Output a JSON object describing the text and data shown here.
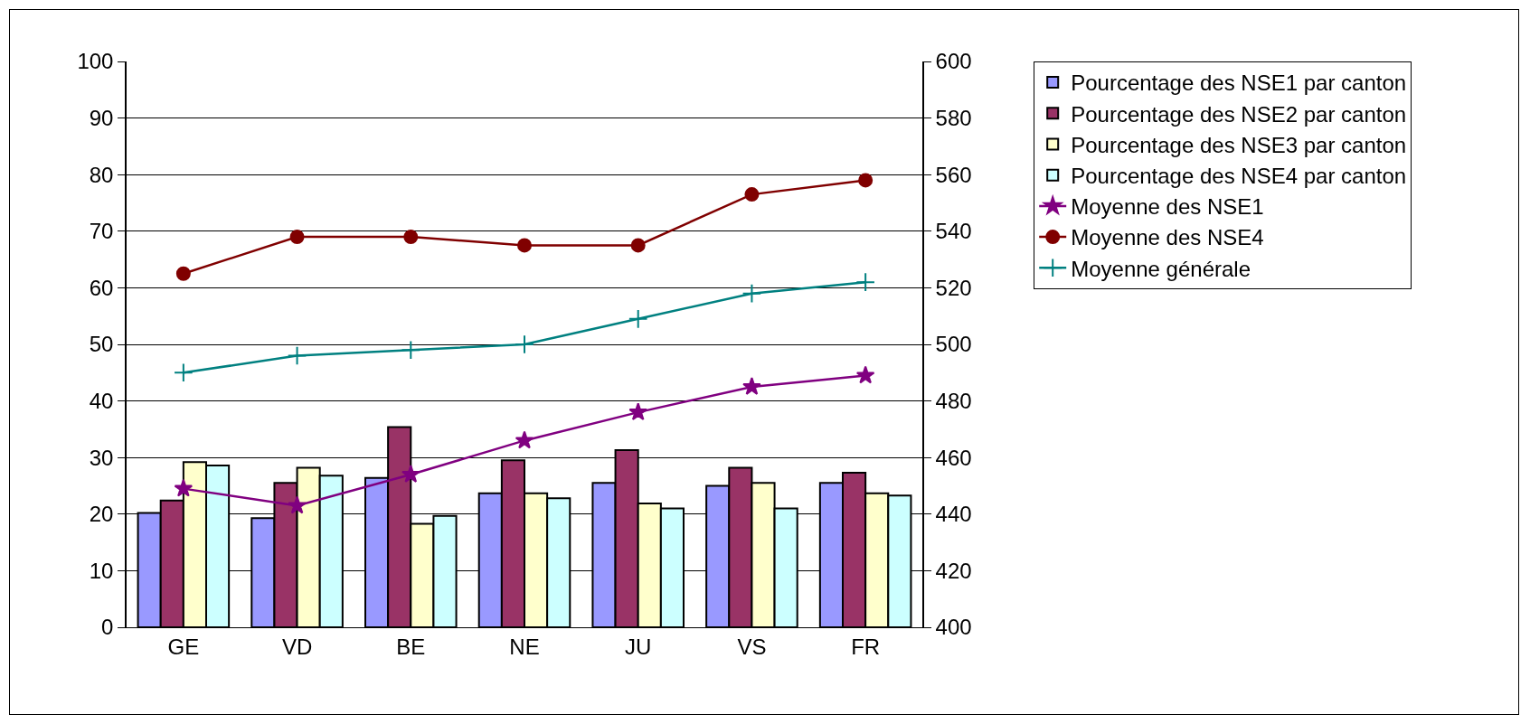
{
  "chart_data": {
    "type": "bar",
    "categories": [
      "GE",
      "VD",
      "BE",
      "NE",
      "JU",
      "VS",
      "FR"
    ],
    "series": [
      {
        "name": "Pourcentage des NSE1 par canton",
        "color": "#9999ff",
        "values": [
          20.2,
          19.3,
          26.4,
          23.7,
          25.5,
          25.0,
          25.5
        ]
      },
      {
        "name": "Pourcentage des NSE2 par canton",
        "color": "#993366",
        "values": [
          22.4,
          25.5,
          35.4,
          29.5,
          31.3,
          28.2,
          27.3
        ]
      },
      {
        "name": "Pourcentage des NSE3 par canton",
        "color": "#ffffcc",
        "values": [
          29.2,
          28.2,
          18.3,
          23.7,
          21.9,
          25.5,
          23.7
        ]
      },
      {
        "name": "Pourcentage des NSE4 par canton",
        "color": "#ccffff",
        "values": [
          28.6,
          26.8,
          19.7,
          22.8,
          21.0,
          21.0,
          23.3
        ]
      },
      {
        "name": "Moyenne des NSE1",
        "type": "line",
        "axis": "y2",
        "marker": "star",
        "color": "#800080",
        "values": [
          449,
          443,
          454,
          466,
          476,
          485,
          489
        ]
      },
      {
        "name": "Moyenne des NSE4",
        "type": "line",
        "axis": "y2",
        "marker": "circle",
        "color": "#800000",
        "values": [
          525,
          538,
          538,
          535,
          535,
          553,
          558
        ]
      },
      {
        "name": "Moyenne générale",
        "type": "line",
        "axis": "y2",
        "marker": "cross",
        "color": "#008080",
        "values": [
          490,
          496,
          498,
          500,
          509,
          518,
          522
        ]
      }
    ],
    "ylim": [
      0,
      100
    ],
    "yticks": [
      0,
      10,
      20,
      30,
      40,
      50,
      60,
      70,
      80,
      90,
      100
    ],
    "y2lim": [
      400,
      600
    ],
    "y2ticks": [
      400,
      420,
      440,
      460,
      480,
      500,
      520,
      540,
      560,
      580,
      600
    ],
    "grid": "y",
    "legend": "right"
  }
}
